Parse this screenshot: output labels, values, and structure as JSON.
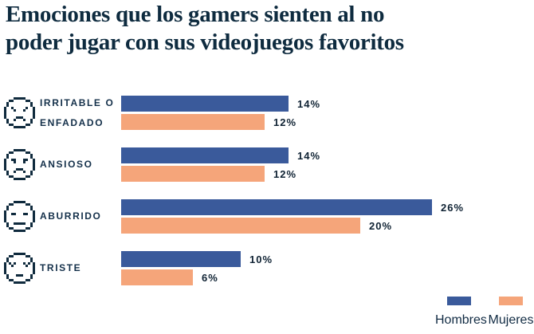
{
  "header": {
    "title_line1": "Emociones que los gamers sienten al no",
    "title_line2": "poder jugar con sus videojuegos favoritos"
  },
  "legend": {
    "men": "Hombres",
    "women": "Mujeres"
  },
  "colors": {
    "men_bar": "#3A5A9B",
    "women_bar": "#F5A57A",
    "title_text": "#0E2B3F",
    "category_text": "#14304A",
    "value_text": "#0F2233",
    "background": "#FFFFFF"
  },
  "chart_data": {
    "type": "bar",
    "orientation": "horizontal",
    "value_unit": "%",
    "grid": false,
    "legend_position": "bottom-right",
    "xlim": [
      0,
      26
    ],
    "title": "Emociones que los gamers sienten al no poder jugar con sus videojuegos favoritos",
    "categories": [
      "Irritable o enfadado",
      "Ansioso",
      "Aburrido",
      "Triste"
    ],
    "series": [
      {
        "name": "Hombres",
        "color": "#3A5A9B",
        "values": [
          14,
          14,
          26,
          10
        ]
      },
      {
        "name": "Mujeres",
        "color": "#F5A57A",
        "values": [
          12,
          12,
          20,
          6
        ]
      }
    ],
    "rows": [
      {
        "icon": "angry-face-icon",
        "label_line1": "IRRITABLE O",
        "label_line2": "ENFADADO",
        "men": 14,
        "men_label": "14%",
        "women": 12,
        "women_label": "12%"
      },
      {
        "icon": "anxious-face-icon",
        "label_line1": "ANSIOSO",
        "label_line2": "",
        "men": 14,
        "men_label": "14%",
        "women": 12,
        "women_label": "12%"
      },
      {
        "icon": "bored-face-icon",
        "label_line1": "ABURRIDO",
        "label_line2": "",
        "men": 26,
        "men_label": "26%",
        "women": 20,
        "women_label": "20%"
      },
      {
        "icon": "sad-face-icon",
        "label_line1": "TRISTE",
        "label_line2": "",
        "men": 10,
        "men_label": "10%",
        "women": 6,
        "women_label": "6%"
      }
    ]
  }
}
